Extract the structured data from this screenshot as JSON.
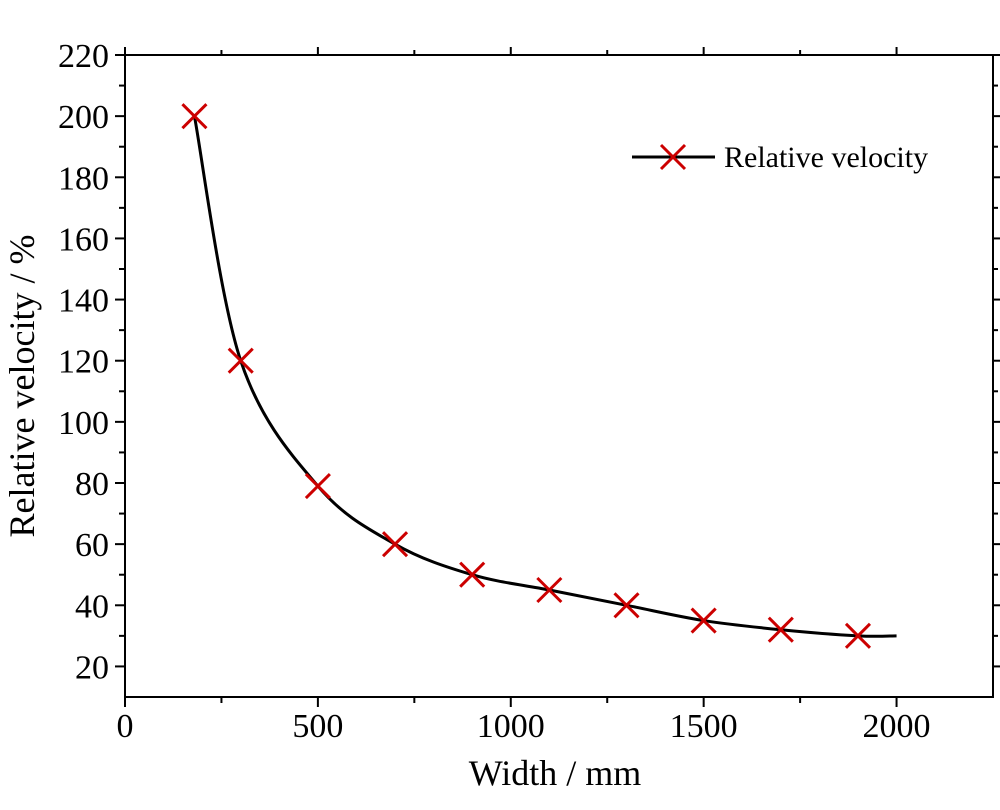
{
  "chart_data": {
    "type": "line",
    "title": "",
    "xlabel": "Width / mm",
    "ylabel": "Relative velocity / %",
    "xlim": [
      0,
      2250
    ],
    "ylim": [
      10,
      220
    ],
    "xticks": [
      0,
      500,
      1000,
      1500,
      2000
    ],
    "yticks": [
      20,
      40,
      60,
      80,
      100,
      120,
      140,
      160,
      180,
      200,
      220
    ],
    "legend_position": "top-right",
    "grid": false,
    "series": [
      {
        "name": "Relative velocity",
        "line_color": "#000000",
        "marker": "x",
        "marker_color": "#cc0000",
        "x": [
          180,
          300,
          500,
          700,
          900,
          1100,
          1300,
          1500,
          1700,
          1900
        ],
        "values": [
          200,
          120,
          79,
          60,
          50,
          45,
          40,
          35,
          32,
          30
        ],
        "curve_end": {
          "x": 2000,
          "y": 30
        }
      }
    ]
  }
}
